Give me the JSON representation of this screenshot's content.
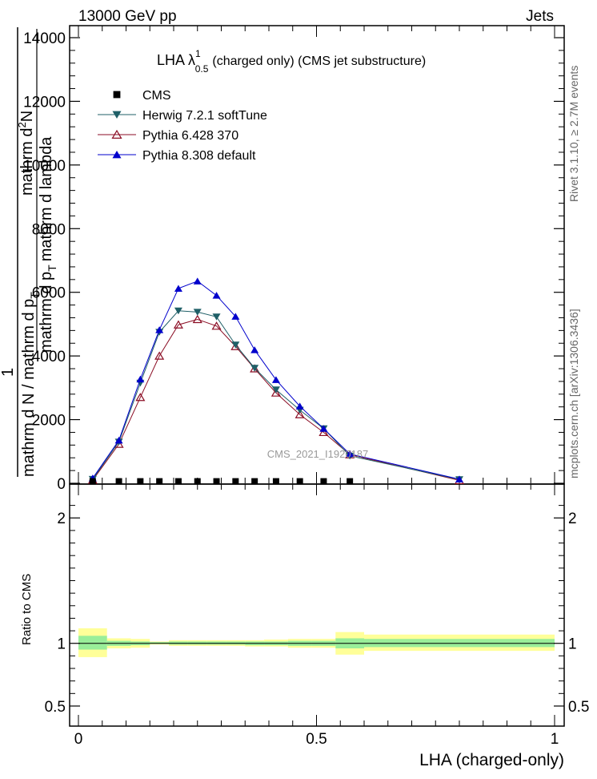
{
  "header": {
    "energy": "13000 GeV pp",
    "process": "Jets",
    "rivet": "Rivet 3.1.10, ≥ 2.7M events",
    "mcplots": "mcplots.cern.ch [arXiv:1306.3436]"
  },
  "title": {
    "main": "LHA λ",
    "sup": "1",
    "sub": "0.5",
    "rest": "(charged only) (CMS jet substructure)"
  },
  "watermark": "CMS_2021_I1920187",
  "ylabel_top": {
    "one": "1",
    "den": "mathrm d N / mathrm d p",
    "den_sub": "T",
    "num": "mathrm d",
    "num_sup": "2",
    "num_rest": "N",
    "num_den": "mathrm d p",
    "num_den_sub": "T",
    "num_den_rest": "mathrm d lambda"
  },
  "ylabel_ratio": "Ratio to CMS",
  "xlabel": "LHA (charged-only)",
  "legend": [
    {
      "label": "CMS",
      "marker": "square",
      "color": "#000000"
    },
    {
      "label": "Herwig 7.2.1 softTune",
      "marker": "triangle-down",
      "color": "#1f5f67"
    },
    {
      "label": "Pythia 6.428 370",
      "marker": "triangle-open",
      "color": "#8b0d24"
    },
    {
      "label": "Pythia 8.308 default",
      "marker": "triangle-up",
      "color": "#0000cc"
    }
  ],
  "chart_data": [
    {
      "type": "line",
      "panel": "main",
      "xlim": [
        0,
        1
      ],
      "ylim": [
        0,
        14000
      ],
      "yticks": [
        0,
        2000,
        4000,
        6000,
        8000,
        10000,
        12000,
        14000
      ],
      "ytick_labels": [
        "0",
        "2000",
        "4000",
        "6000",
        "8000",
        "10000",
        "12000",
        "14000"
      ],
      "xticks": [
        0,
        0.5,
        1
      ],
      "xtick_labels": [
        "0",
        "0.5",
        "1"
      ],
      "x": [
        0.03,
        0.085,
        0.13,
        0.17,
        0.21,
        0.25,
        0.29,
        0.33,
        0.37,
        0.415,
        0.465,
        0.515,
        0.57,
        0.8
      ],
      "series": [
        {
          "name": "CMS",
          "values": [
            60,
            60,
            60,
            60,
            60,
            60,
            60,
            60,
            60,
            60,
            60,
            60,
            60,
            null
          ]
        },
        {
          "name": "Herwig 7.2.1 softTune",
          "values": [
            130,
            1300,
            3150,
            4750,
            5420,
            5380,
            5230,
            4350,
            3620,
            2940,
            2300,
            1720,
            860,
            120
          ]
        },
        {
          "name": "Pythia 6.428 370",
          "values": [
            100,
            1230,
            2700,
            4000,
            4980,
            5150,
            4940,
            4300,
            3600,
            2840,
            2160,
            1600,
            900,
            90
          ]
        },
        {
          "name": "Pythia 8.308 default",
          "values": [
            160,
            1350,
            3270,
            4820,
            6120,
            6350,
            5900,
            5240,
            4190,
            3250,
            2420,
            1720,
            920,
            130
          ]
        }
      ]
    },
    {
      "type": "area",
      "panel": "ratio",
      "ylabel": "Ratio to CMS",
      "xlabel": "LHA (charged-only)",
      "xlim": [
        0,
        1
      ],
      "ylim": [
        0.34,
        2.27
      ],
      "yticks": [
        0.5,
        1,
        2
      ],
      "ytick_labels": [
        "0.5",
        "1",
        "2"
      ],
      "bins": [
        {
          "x0": 0.0,
          "x1": 0.06,
          "inner": [
            0.95,
            1.06
          ],
          "outer": [
            0.89,
            1.12
          ]
        },
        {
          "x0": 0.06,
          "x1": 0.11,
          "inner": [
            0.98,
            1.02
          ],
          "outer": [
            0.96,
            1.04
          ]
        },
        {
          "x0": 0.11,
          "x1": 0.15,
          "inner": [
            0.985,
            1.015
          ],
          "outer": [
            0.965,
            1.035
          ]
        },
        {
          "x0": 0.15,
          "x1": 0.19,
          "inner": [
            0.995,
            1.01
          ],
          "outer": [
            0.99,
            1.015
          ]
        },
        {
          "x0": 0.19,
          "x1": 0.23,
          "inner": [
            0.99,
            1.015
          ],
          "outer": [
            0.98,
            1.025
          ]
        },
        {
          "x0": 0.23,
          "x1": 0.27,
          "inner": [
            0.99,
            1.015
          ],
          "outer": [
            0.98,
            1.025
          ]
        },
        {
          "x0": 0.27,
          "x1": 0.31,
          "inner": [
            0.99,
            1.015
          ],
          "outer": [
            0.98,
            1.025
          ]
        },
        {
          "x0": 0.31,
          "x1": 0.35,
          "inner": [
            0.99,
            1.015
          ],
          "outer": [
            0.98,
            1.025
          ]
        },
        {
          "x0": 0.35,
          "x1": 0.39,
          "inner": [
            0.985,
            1.015
          ],
          "outer": [
            0.975,
            1.025
          ]
        },
        {
          "x0": 0.39,
          "x1": 0.44,
          "inner": [
            0.985,
            1.015
          ],
          "outer": [
            0.975,
            1.03
          ]
        },
        {
          "x0": 0.44,
          "x1": 0.49,
          "inner": [
            0.98,
            1.02
          ],
          "outer": [
            0.965,
            1.035
          ]
        },
        {
          "x0": 0.49,
          "x1": 0.54,
          "inner": [
            0.98,
            1.02
          ],
          "outer": [
            0.965,
            1.035
          ]
        },
        {
          "x0": 0.54,
          "x1": 0.6,
          "inner": [
            0.96,
            1.04
          ],
          "outer": [
            0.91,
            1.09
          ]
        },
        {
          "x0": 0.6,
          "x1": 1.0,
          "inner": [
            0.97,
            1.035
          ],
          "outer": [
            0.94,
            1.07
          ]
        }
      ]
    }
  ]
}
